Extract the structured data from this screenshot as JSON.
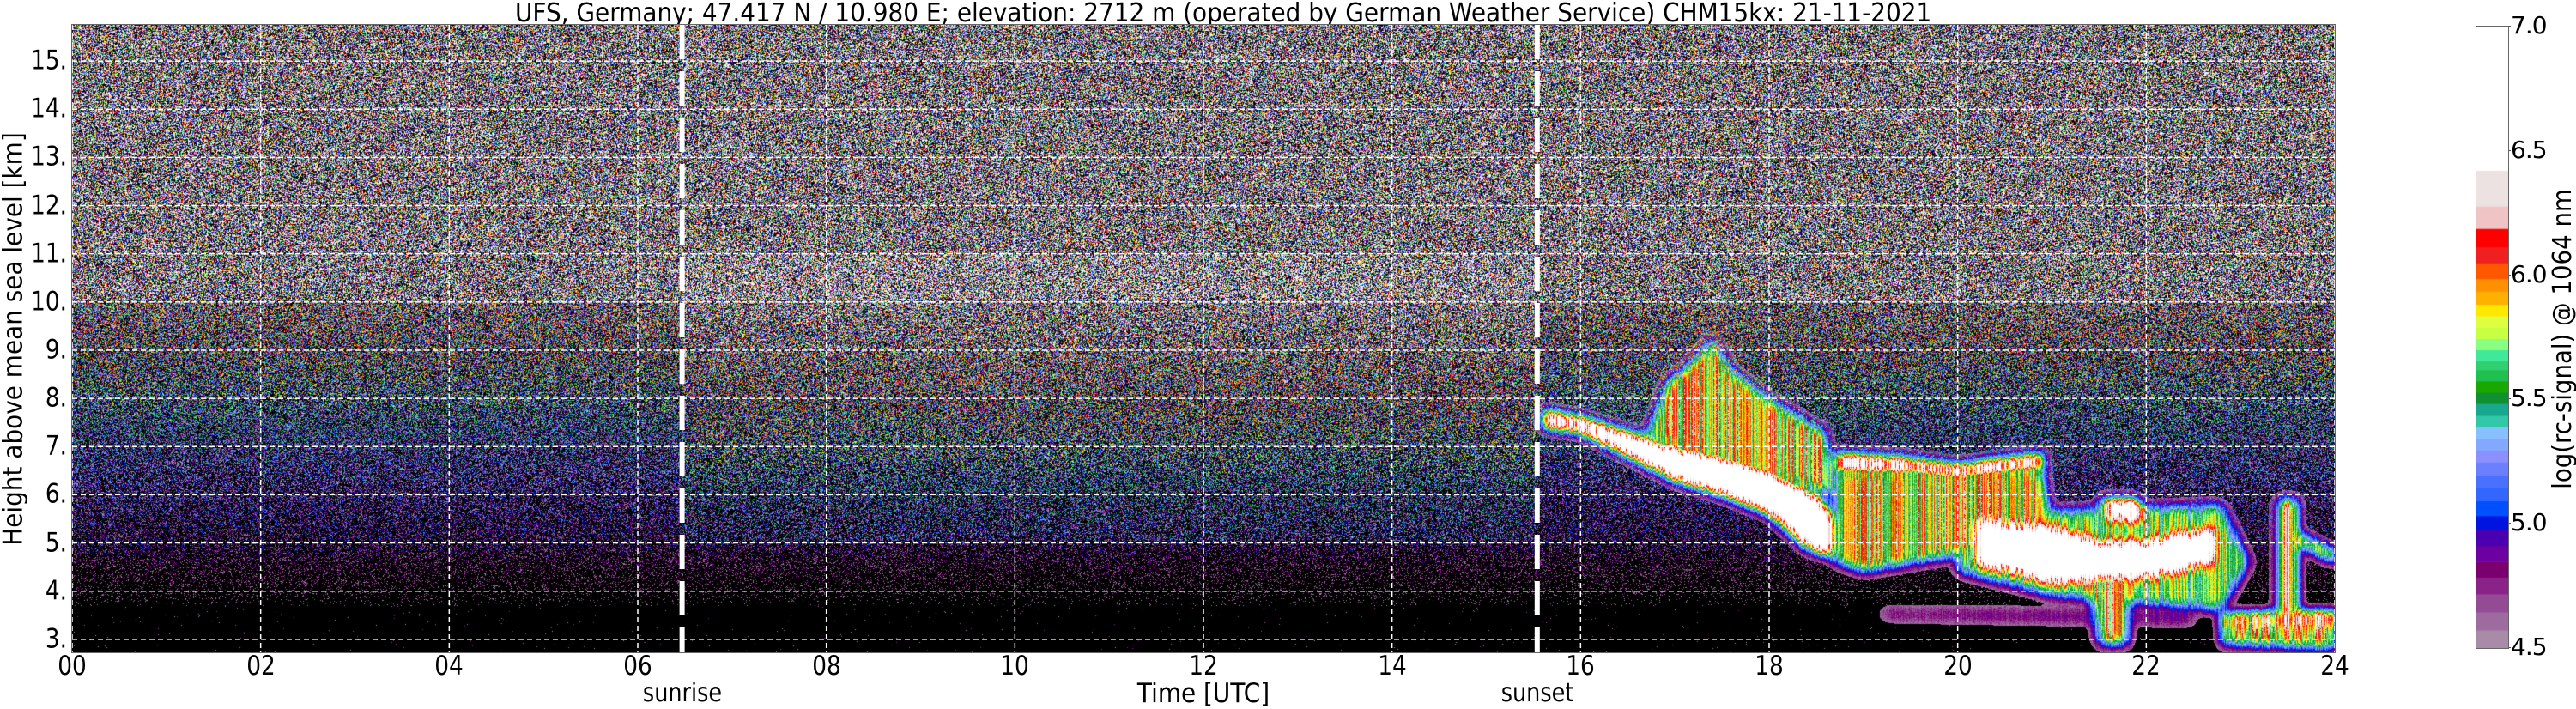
{
  "chart_data": {
    "type": "heatmap",
    "title": "UFS, Germany; 47.417 N / 10.980 E; elevation: 2712 m  (operated by German Weather Service)    CHM15kx: 21-11-2021",
    "xlabel": "Time [UTC]",
    "ylabel": "Height above mean sea level [km]",
    "xlim": [
      0,
      24
    ],
    "ylim": [
      2.73,
      15.75
    ],
    "x_ticks": [
      0,
      2,
      4,
      6,
      8,
      10,
      12,
      14,
      16,
      18,
      20,
      22,
      24
    ],
    "x_tick_labels": [
      "00",
      "02",
      "04",
      "06",
      "08",
      "10",
      "12",
      "14",
      "16",
      "18",
      "20",
      "22",
      "24"
    ],
    "y_ticks": [
      3,
      4,
      5,
      6,
      7,
      8,
      9,
      10,
      11,
      12,
      13,
      14,
      15
    ],
    "y_tick_labels": [
      "3.",
      "4.",
      "5.",
      "6.",
      "7.",
      "8.",
      "9.",
      "10.",
      "11.",
      "12.",
      "13.",
      "14.",
      "15."
    ],
    "grid": true,
    "background_color": "#000000",
    "markers": [
      {
        "label": "sunrise",
        "x": 6.47
      },
      {
        "label": "sunset",
        "x": 15.54
      }
    ],
    "colorbar": {
      "label": "log(rc-signal) @ 1064 nm",
      "range": [
        4.5,
        7.0
      ],
      "ticks": [
        4.5,
        5.0,
        5.5,
        6.0,
        6.5,
        7.0
      ],
      "tick_labels": [
        "4.5",
        "5.0",
        "5.5",
        "6.0",
        "6.5",
        "7.0"
      ],
      "levels": [
        4.5,
        4.572,
        4.644,
        4.717,
        4.785,
        4.848,
        4.912,
        4.975,
        5.032,
        5.092,
        5.146,
        5.195,
        5.249,
        5.296,
        5.345,
        5.39,
        5.435,
        5.484,
        5.529,
        5.574,
        5.619,
        5.655,
        5.7,
        5.745,
        5.79,
        5.836,
        5.883,
        5.935,
        5.986,
        6.049,
        6.112,
        6.188,
        6.278,
        6.422,
        7.0
      ],
      "colors": [
        "#a78ba7",
        "#9e6b9e",
        "#934c93",
        "#8a2388",
        "#7a0070",
        "#6c00a0",
        "#4a00b0",
        "#0014e0",
        "#0050ff",
        "#3366ff",
        "#4a70ff",
        "#6a80ff",
        "#8c90ff",
        "#82a8ff",
        "#88c0ff",
        "#30c8a8",
        "#18a890",
        "#10902e",
        "#18a800",
        "#20c050",
        "#30d070",
        "#40e89a",
        "#88ff80",
        "#c8ff40",
        "#ddff40",
        "#ffe800",
        "#ffb000",
        "#ff9000",
        "#ff5800",
        "#f02020",
        "#ff0000",
        "#f0c4c4",
        "#ece2e2",
        "#ffffff"
      ]
    },
    "cloud_layers": [
      {
        "intensity": 1.0,
        "points": [
          [
            15.6,
            7.75
          ],
          [
            16.0,
            7.6
          ],
          [
            16.5,
            7.3
          ],
          [
            17.0,
            7.0
          ],
          [
            17.5,
            6.8
          ],
          [
            18.0,
            6.5
          ],
          [
            18.5,
            6.0
          ],
          [
            18.7,
            5.5
          ],
          [
            18.7,
            4.7
          ],
          [
            18.4,
            4.9
          ],
          [
            18.0,
            5.6
          ],
          [
            17.5,
            6.0
          ],
          [
            17.0,
            6.3
          ],
          [
            16.5,
            6.8
          ],
          [
            16.0,
            7.3
          ],
          [
            15.6,
            7.4
          ]
        ]
      },
      {
        "intensity": 0.55,
        "points": [
          [
            16.7,
            7.2
          ],
          [
            16.9,
            8.3
          ],
          [
            17.2,
            8.8
          ],
          [
            17.4,
            9.3
          ],
          [
            17.6,
            8.6
          ],
          [
            18.0,
            8.0
          ],
          [
            18.6,
            7.3
          ],
          [
            18.7,
            6.0
          ],
          [
            17.5,
            6.6
          ]
        ]
      },
      {
        "intensity": 1.0,
        "points": [
          [
            18.7,
            6.85
          ],
          [
            19.5,
            6.75
          ],
          [
            20.0,
            6.6
          ],
          [
            20.5,
            6.75
          ],
          [
            20.9,
            6.85
          ],
          [
            20.9,
            6.55
          ],
          [
            20.0,
            6.35
          ],
          [
            19.5,
            6.45
          ],
          [
            18.7,
            6.5
          ]
        ]
      },
      {
        "intensity": 0.55,
        "points": [
          [
            18.7,
            6.5
          ],
          [
            20.9,
            6.55
          ],
          [
            21.0,
            5.2
          ],
          [
            20.2,
            4.8
          ],
          [
            19.6,
            4.6
          ],
          [
            19.0,
            4.4
          ],
          [
            18.7,
            4.6
          ]
        ]
      },
      {
        "intensity": 0.45,
        "points": [
          [
            20.0,
            5.6
          ],
          [
            22.8,
            5.8
          ],
          [
            23.1,
            4.6
          ],
          [
            22.8,
            3.6
          ],
          [
            21.0,
            3.9
          ],
          [
            20.0,
            4.4
          ]
        ]
      },
      {
        "intensity": 1.0,
        "points": [
          [
            20.2,
            5.4
          ],
          [
            21.0,
            5.3
          ],
          [
            21.5,
            5.0
          ],
          [
            22.0,
            5.0
          ],
          [
            22.7,
            5.3
          ],
          [
            22.7,
            4.6
          ],
          [
            22.0,
            4.3
          ],
          [
            21.0,
            4.2
          ],
          [
            20.2,
            4.6
          ]
        ]
      },
      {
        "intensity": 1.0,
        "points": [
          [
            21.5,
            5.9
          ],
          [
            21.9,
            5.9
          ],
          [
            22.0,
            5.5
          ],
          [
            21.6,
            5.5
          ]
        ]
      },
      {
        "intensity": 0.6,
        "points": [
          [
            21.4,
            4.2
          ],
          [
            21.8,
            4.2
          ],
          [
            21.8,
            2.9
          ],
          [
            21.5,
            2.9
          ]
        ]
      },
      {
        "intensity": 0.55,
        "points": [
          [
            22.8,
            3.45
          ],
          [
            24.0,
            3.5
          ],
          [
            24.0,
            2.8
          ],
          [
            22.8,
            2.9
          ]
        ]
      },
      {
        "intensity": 1.0,
        "points": [
          [
            22.8,
            3.5
          ],
          [
            24.0,
            3.55
          ],
          [
            24.0,
            3.38
          ],
          [
            22.8,
            3.38
          ]
        ]
      },
      {
        "intensity": 0.2,
        "points": [
          [
            19.2,
            3.6
          ],
          [
            22.5,
            3.55
          ],
          [
            22.5,
            3.35
          ],
          [
            19.2,
            3.45
          ]
        ]
      },
      {
        "intensity": 0.7,
        "points": [
          [
            23.4,
            5.9
          ],
          [
            23.6,
            5.9
          ],
          [
            23.6,
            3.5
          ],
          [
            23.4,
            3.5
          ]
        ]
      },
      {
        "intensity": 0.8,
        "points": [
          [
            23.6,
            5.2
          ],
          [
            24.0,
            4.8
          ],
          [
            24.0,
            4.6
          ],
          [
            23.6,
            5.0
          ]
        ]
      }
    ]
  }
}
